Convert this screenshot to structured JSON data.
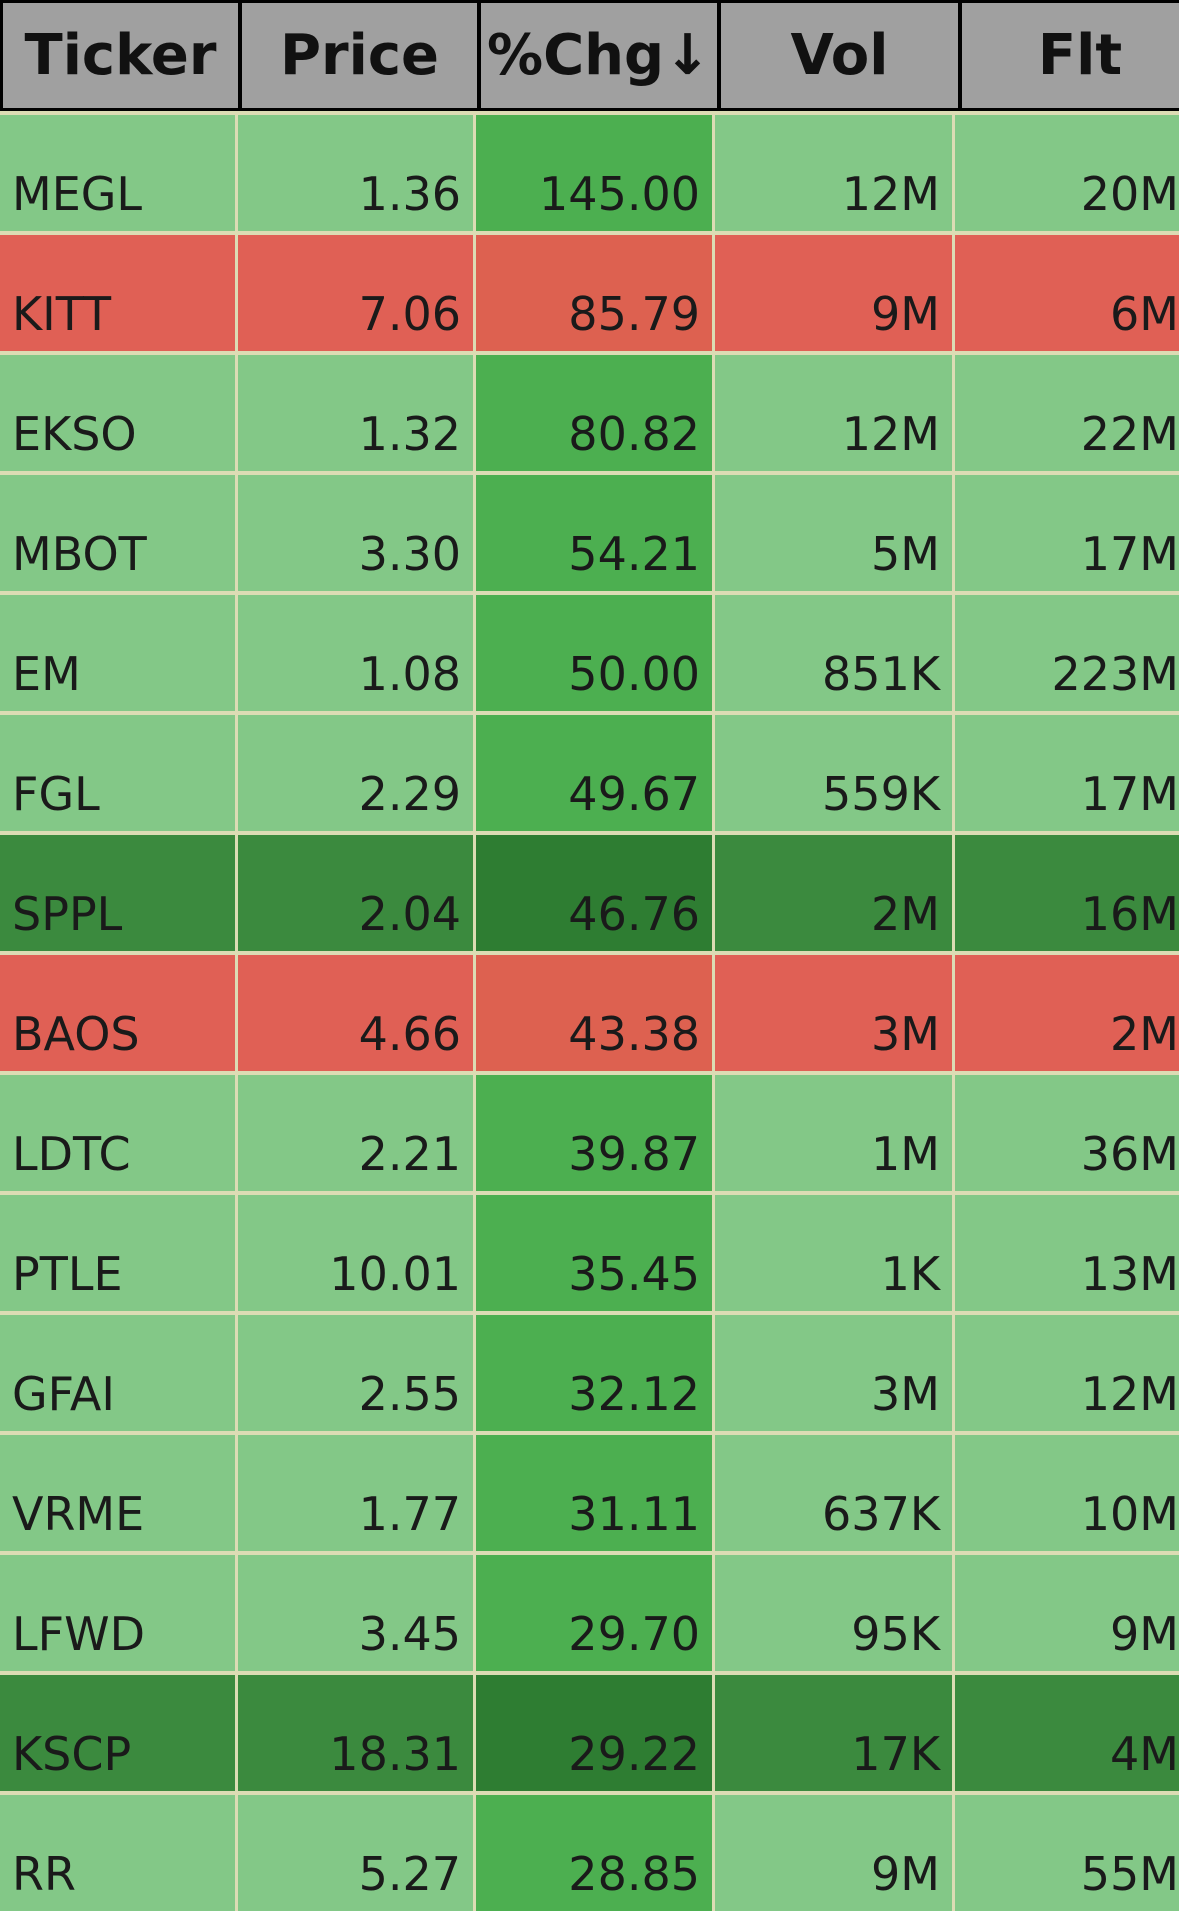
{
  "table": {
    "headers": [
      "Ticker",
      "Price",
      "%Chg↓",
      "Vol",
      "Flt"
    ],
    "rows": [
      [
        "MEGL",
        "1.36",
        "145.00",
        "12M",
        "20M"
      ],
      [
        "KITT",
        "7.06",
        "85.79",
        "9M",
        "6M"
      ],
      [
        "EKSO",
        "1.32",
        "80.82",
        "12M",
        "22M"
      ],
      [
        "MBOT",
        "3.30",
        "54.21",
        "5M",
        "17M"
      ],
      [
        "EM",
        "1.08",
        "50.00",
        "851K",
        "223M"
      ],
      [
        "FGL",
        "2.29",
        "49.67",
        "559K",
        "17M"
      ],
      [
        "SPPL",
        "2.04",
        "46.76",
        "2M",
        "16M"
      ],
      [
        "BAOS",
        "4.66",
        "43.38",
        "3M",
        "2M"
      ],
      [
        "LDTC",
        "2.21",
        "39.87",
        "1M",
        "36M"
      ],
      [
        "PTLE",
        "10.01",
        "35.45",
        "1K",
        "13M"
      ],
      [
        "GFAI",
        "2.55",
        "32.12",
        "3M",
        "12M"
      ],
      [
        "VRME",
        "1.77",
        "31.11",
        "637K",
        "10M"
      ],
      [
        "LFWD",
        "3.45",
        "29.70",
        "95K",
        "9M"
      ],
      [
        "KSCP",
        "18.31",
        "29.22",
        "17K",
        "4M"
      ],
      [
        "RR",
        "5.27",
        "28.85",
        "9M",
        "55M"
      ]
    ],
    "row_colors": [
      [
        "#83c887",
        "#4caf50"
      ],
      [
        "#e06055",
        "#dd6150"
      ],
      [
        "#83c887",
        "#4caf50"
      ],
      [
        "#83c887",
        "#4caf50"
      ],
      [
        "#83c887",
        "#4caf50"
      ],
      [
        "#83c887",
        "#4caf50"
      ],
      [
        "#3b8a3e",
        "#2e7d32"
      ],
      [
        "#e06055",
        "#dd6150"
      ],
      [
        "#83c887",
        "#4caf50"
      ],
      [
        "#83c887",
        "#4caf50"
      ],
      [
        "#83c887",
        "#4caf50"
      ],
      [
        "#83c887",
        "#4caf50"
      ],
      [
        "#83c887",
        "#4caf50"
      ],
      [
        "#3b8a3e",
        "#2e7d32"
      ],
      [
        "#83c887",
        "#4caf50"
      ]
    ]
  }
}
